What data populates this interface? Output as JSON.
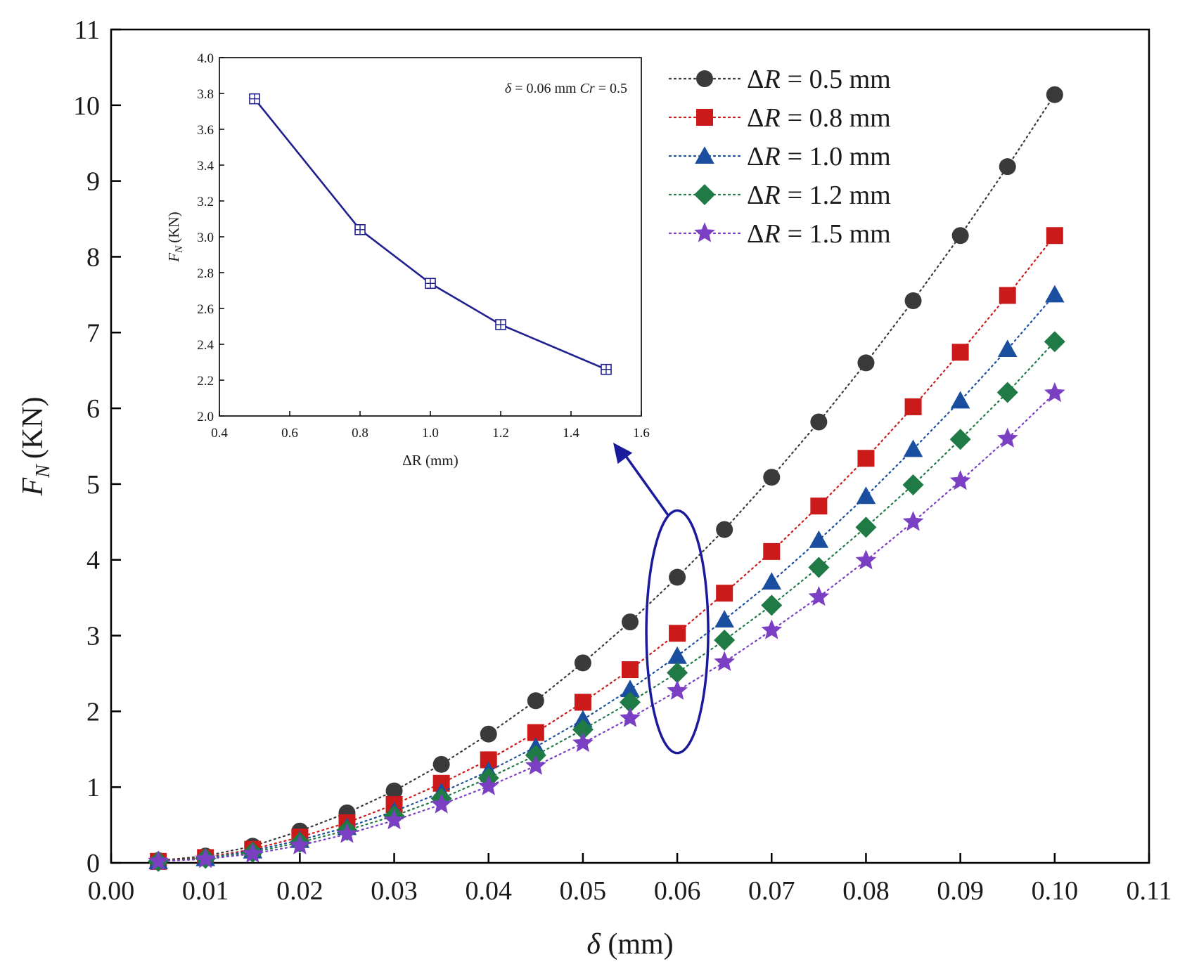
{
  "chart_data": [
    {
      "type": "scatter",
      "title": "",
      "xlabel_symbol": "δ",
      "xlabel_unit": "(mm)",
      "ylabel_symbol": "F",
      "ylabel_sub": "N",
      "ylabel_unit": "(KN)",
      "xlim": [
        0.0,
        0.11
      ],
      "ylim": [
        0,
        11
      ],
      "xticks": [
        0.0,
        0.01,
        0.02,
        0.03,
        0.04,
        0.05,
        0.06,
        0.07,
        0.08,
        0.09,
        0.1,
        0.11
      ],
      "xtick_labels": [
        "0.00",
        "0.01",
        "0.02",
        "0.03",
        "0.04",
        "0.05",
        "0.06",
        "0.07",
        "0.08",
        "0.09",
        "0.10",
        "0.11"
      ],
      "yticks": [
        0,
        1,
        2,
        3,
        4,
        5,
        6,
        7,
        8,
        9,
        10,
        11
      ],
      "ytick_labels": [
        "0",
        "1",
        "2",
        "3",
        "4",
        "5",
        "6",
        "7",
        "8",
        "9",
        "10",
        "11"
      ],
      "line_style": "dotted",
      "legend_position": "top-right",
      "x": [
        0.005,
        0.01,
        0.015,
        0.02,
        0.025,
        0.03,
        0.035,
        0.04,
        0.045,
        0.05,
        0.055,
        0.06,
        0.065,
        0.07,
        0.075,
        0.08,
        0.085,
        0.09,
        0.095,
        0.1
      ],
      "series": [
        {
          "name_prefix": "ΔR",
          "name_value": "= 0.5 mm",
          "marker": "circle",
          "color": "#3a3a3a",
          "values": [
            0.03,
            0.09,
            0.22,
            0.42,
            0.66,
            0.95,
            1.3,
            1.7,
            2.14,
            2.64,
            3.18,
            3.77,
            4.4,
            5.09,
            5.82,
            6.6,
            7.42,
            8.28,
            9.19,
            10.14
          ]
        },
        {
          "name_prefix": "ΔR",
          "name_value": "= 0.8 mm",
          "marker": "square",
          "color": "#cc1a1a",
          "values": [
            0.02,
            0.07,
            0.18,
            0.34,
            0.53,
            0.77,
            1.05,
            1.36,
            1.72,
            2.12,
            2.55,
            3.03,
            3.56,
            4.11,
            4.71,
            5.34,
            6.02,
            6.74,
            7.49,
            8.28
          ]
        },
        {
          "name_prefix": "ΔR",
          "name_value": "= 1.0 mm",
          "marker": "triangle",
          "color": "#1a4fa0",
          "values": [
            0.02,
            0.06,
            0.16,
            0.3,
            0.47,
            0.68,
            0.93,
            1.21,
            1.53,
            1.89,
            2.29,
            2.73,
            3.21,
            3.71,
            4.26,
            4.84,
            5.46,
            6.1,
            6.78,
            7.5
          ]
        },
        {
          "name_prefix": "ΔR",
          "name_value": "= 1.2 mm",
          "marker": "diamond",
          "color": "#1f7a45",
          "values": [
            0.02,
            0.06,
            0.14,
            0.27,
            0.43,
            0.62,
            0.85,
            1.12,
            1.42,
            1.76,
            2.12,
            2.51,
            2.94,
            3.4,
            3.9,
            4.43,
            4.99,
            5.59,
            6.21,
            6.88
          ]
        },
        {
          "name_prefix": "ΔR",
          "name_value": "= 1.5 mm",
          "marker": "star",
          "color": "#7b3fc4",
          "values": [
            0.02,
            0.05,
            0.12,
            0.23,
            0.38,
            0.56,
            0.77,
            1.01,
            1.28,
            1.58,
            1.91,
            2.27,
            2.65,
            3.07,
            3.51,
            3.99,
            4.5,
            5.04,
            5.6,
            6.2
          ]
        }
      ],
      "highlight": {
        "x": 0.06,
        "y_low": 1.45,
        "y_high": 4.65,
        "color": "#1a1a9c"
      }
    },
    {
      "type": "line",
      "title": "",
      "annotation": "δ = 0.06 mm  Cr = 0.5",
      "annotation_parts": [
        "δ",
        "= 0.06 mm  ",
        "Cr",
        " = 0.5"
      ],
      "xlabel_symbol": "ΔR",
      "xlabel_unit": "(mm)",
      "ylabel_symbol": "F",
      "ylabel_sub": "N",
      "ylabel_unit": "(KN)",
      "xlim": [
        0.4,
        1.6
      ],
      "ylim": [
        2.0,
        4.0
      ],
      "xticks": [
        0.4,
        0.6,
        0.8,
        1.0,
        1.2,
        1.4,
        1.6
      ],
      "xtick_labels": [
        "0.4",
        "0.6",
        "0.8",
        "1.0",
        "1.2",
        "1.4",
        "1.6"
      ],
      "yticks": [
        2.0,
        2.2,
        2.4,
        2.6,
        2.8,
        3.0,
        3.2,
        3.4,
        3.6,
        3.8,
        4.0
      ],
      "ytick_labels": [
        "2.0",
        "2.2",
        "2.4",
        "2.6",
        "2.8",
        "3.0",
        "3.2",
        "3.4",
        "3.6",
        "3.8",
        "4.0"
      ],
      "marker": "squared-plus",
      "color": "#1f1f8f",
      "x": [
        0.5,
        0.8,
        1.0,
        1.2,
        1.5
      ],
      "values": [
        3.77,
        3.04,
        2.74,
        2.51,
        2.26
      ]
    }
  ]
}
